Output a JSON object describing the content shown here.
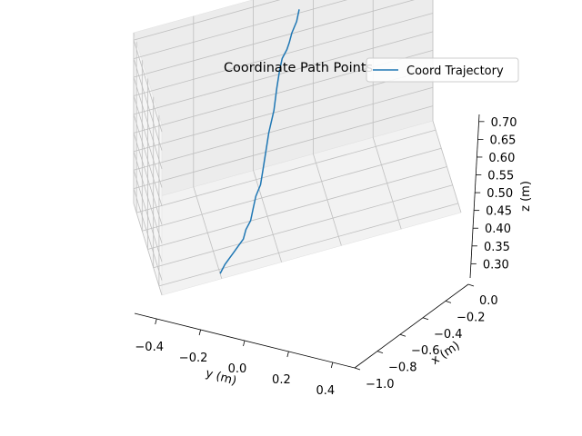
{
  "chart_data": {
    "type": "line",
    "projection": "3d",
    "title": "Coordinate Path Points",
    "xlabel": "x (m)",
    "ylabel": "y (m)",
    "zlabel": "z (m)",
    "xlim": [
      -1.0,
      0.0
    ],
    "ylim": [
      -0.5,
      0.5
    ],
    "zlim": [
      0.26,
      0.72
    ],
    "x_ticks": [
      "−1.0",
      "−0.8",
      "−0.6",
      "−0.4",
      "−0.2",
      "0.0"
    ],
    "y_ticks": [
      "−0.4",
      "−0.2",
      "0.0",
      "0.2",
      "0.4"
    ],
    "z_ticks": [
      "0.30",
      "0.35",
      "0.40",
      "0.45",
      "0.50",
      "0.55",
      "0.60",
      "0.65",
      "0.70"
    ],
    "grid": true,
    "legend": {
      "position": "top-right",
      "entries": [
        "Coord Trajectory"
      ]
    },
    "series": [
      {
        "name": "Coord Trajectory",
        "color": "#1f77b4",
        "x": [
          -0.5,
          -0.48,
          -0.46,
          -0.44,
          -0.42,
          -0.4,
          -0.38,
          -0.36,
          -0.34,
          -0.32,
          -0.3,
          -0.28,
          -0.26,
          -0.24,
          -0.22,
          -0.2,
          -0.18,
          -0.16,
          -0.14,
          -0.12,
          -0.1,
          -0.08,
          -0.06
        ],
        "y": [
          0.25,
          0.26,
          0.27,
          0.28,
          0.29,
          0.3,
          0.3,
          0.31,
          0.31,
          0.31,
          0.32,
          0.32,
          0.32,
          0.32,
          0.33,
          0.33,
          0.33,
          0.33,
          0.34,
          0.34,
          0.34,
          0.35,
          0.35
        ],
        "z": [
          0.265,
          0.28,
          0.29,
          0.3,
          0.31,
          0.32,
          0.335,
          0.35,
          0.37,
          0.39,
          0.41,
          0.44,
          0.47,
          0.5,
          0.54,
          0.58,
          0.61,
          0.63,
          0.645,
          0.655,
          0.67,
          0.69,
          0.71
        ]
      }
    ]
  }
}
